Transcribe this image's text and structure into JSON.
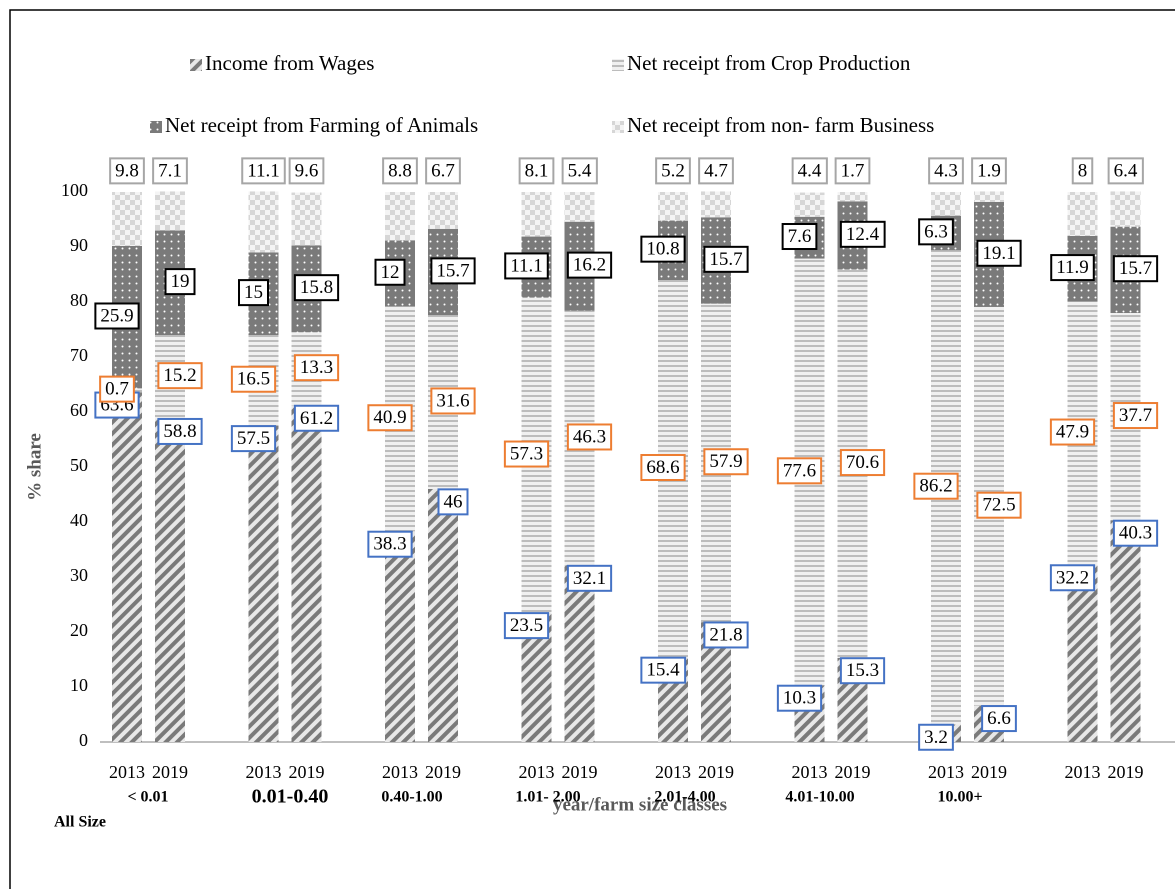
{
  "chart_data": {
    "type": "stacked_bar",
    "y_label": "% share",
    "x_label": "year/farm size classes",
    "categories": [
      "2013",
      "2019",
      "2013",
      "2019",
      "2013",
      "2019",
      "2013",
      "2019",
      "2013",
      "2019",
      "2013",
      "2019",
      "2013",
      "2019",
      "2013",
      "2019"
    ],
    "groups": [
      "< 0.01",
      "0.01-0.40",
      "0.40-1.00",
      "1.01- 2.00",
      "2.01-4.00",
      "4.01-10.00",
      "10.00+",
      "All Size"
    ],
    "series": [
      {
        "name": "Income from Wages",
        "color": "#7f7f7f",
        "label_color": "#4472c4",
        "values": [
          63.6,
          58.8,
          57.5,
          61.2,
          38.3,
          46,
          23.5,
          32.1,
          15.4,
          21.8,
          10.3,
          15.3,
          3.2,
          6.6,
          32.2,
          40.3
        ]
      },
      {
        "name": "Net receipt from Crop Production",
        "color": "#bfbfbf",
        "label_color": "#ed7d31",
        "values": [
          0.7,
          15.2,
          16.5,
          13.3,
          40.9,
          31.6,
          57.3,
          46.3,
          68.6,
          57.9,
          77.6,
          70.6,
          86.2,
          72.5,
          47.9,
          37.7
        ]
      },
      {
        "name": "Net receipt from Farming of Animals",
        "color": "#7f7f7f",
        "label_color": "#000000",
        "values": [
          25.9,
          19,
          15,
          15.8,
          12,
          15.7,
          11.1,
          16.2,
          10.8,
          15.7,
          7.6,
          12.4,
          6.3,
          19.1,
          11.9,
          15.7
        ]
      },
      {
        "name": "Net receipt from non- farm Business",
        "color": "#d9d9d9",
        "label_color": "#a6a6a6",
        "values": [
          9.8,
          7.1,
          11.1,
          9.6,
          8.8,
          6.7,
          8.1,
          5.4,
          5.2,
          4.7,
          4.4,
          1.7,
          4.3,
          1.9,
          8,
          6.4
        ]
      }
    ],
    "ylim": [
      0,
      100
    ],
    "yticks": [
      0,
      10,
      20,
      30,
      40,
      50,
      60,
      70,
      80,
      90,
      100
    ],
    "grid": false
  }
}
